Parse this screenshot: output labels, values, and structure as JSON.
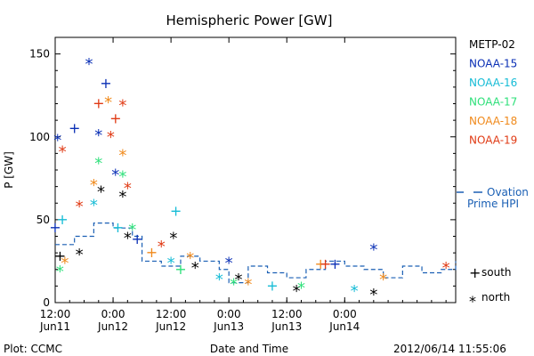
{
  "chart_data": {
    "type": "scatter",
    "title": "Hemispheric Power [GW]",
    "ylabel": "P [GW]",
    "xlabel": "Date and Time",
    "ylim": [
      0,
      160
    ],
    "xlim": [
      "2012-06-11 12:00",
      "2012-06-14 23:00"
    ],
    "yticks": [
      0,
      50,
      100,
      150
    ],
    "xticks": [
      {
        "x": "2012-06-11 12:00",
        "time": "12:00",
        "day": "Jun11"
      },
      {
        "x": "2012-06-12 00:00",
        "time": "0:00",
        "day": "Jun12"
      },
      {
        "x": "2012-06-12 12:00",
        "time": "12:00",
        "day": "Jun12"
      },
      {
        "x": "2012-06-13 00:00",
        "time": "0:00",
        "day": "Jun13"
      },
      {
        "x": "2012-06-13 12:00",
        "time": "12:00",
        "day": "Jun13"
      },
      {
        "x": "2012-06-14 00:00",
        "time": "0:00",
        "day": "Jun14"
      }
    ],
    "grid": false,
    "legend_position": "right",
    "symbols": {
      "south": "+",
      "north": "*"
    },
    "legend_symbols": [
      {
        "symbol": "+",
        "label": "south"
      },
      {
        "symbol": "*",
        "label": "north"
      }
    ],
    "series": [
      {
        "name": "METP-02",
        "color": "#000000",
        "points": [
          {
            "x": "2012-06-11 13:00",
            "y": 28,
            "h": "south"
          },
          {
            "x": "2012-06-11 17:00",
            "y": 30,
            "h": "north"
          },
          {
            "x": "2012-06-11 21:30",
            "y": 68,
            "h": "north"
          },
          {
            "x": "2012-06-12 02:00",
            "y": 65,
            "h": "north"
          },
          {
            "x": "2012-06-12 03:00",
            "y": 40,
            "h": "north"
          },
          {
            "x": "2012-06-12 12:30",
            "y": 40,
            "h": "north"
          },
          {
            "x": "2012-06-12 17:00",
            "y": 22,
            "h": "north"
          },
          {
            "x": "2012-06-13 02:00",
            "y": 15,
            "h": "north"
          },
          {
            "x": "2012-06-13 14:00",
            "y": 8,
            "h": "north"
          },
          {
            "x": "2012-06-14 06:00",
            "y": 6,
            "h": "north"
          }
        ]
      },
      {
        "name": "NOAA-15",
        "color": "#0a2fb5",
        "points": [
          {
            "x": "2012-06-11 12:00",
            "y": 45,
            "h": "south"
          },
          {
            "x": "2012-06-11 12:30",
            "y": 99,
            "h": "north"
          },
          {
            "x": "2012-06-11 16:00",
            "y": 105,
            "h": "south"
          },
          {
            "x": "2012-06-11 19:00",
            "y": 145,
            "h": "north"
          },
          {
            "x": "2012-06-11 21:00",
            "y": 102,
            "h": "north"
          },
          {
            "x": "2012-06-11 22:30",
            "y": 132,
            "h": "south"
          },
          {
            "x": "2012-06-12 00:30",
            "y": 78,
            "h": "north"
          },
          {
            "x": "2012-06-12 05:00",
            "y": 38,
            "h": "south"
          },
          {
            "x": "2012-06-13 00:00",
            "y": 25,
            "h": "north"
          },
          {
            "x": "2012-06-13 22:00",
            "y": 23,
            "h": "south"
          },
          {
            "x": "2012-06-14 06:00",
            "y": 33,
            "h": "north"
          }
        ]
      },
      {
        "name": "NOAA-16",
        "color": "#16bcd6",
        "points": [
          {
            "x": "2012-06-11 13:30",
            "y": 50,
            "h": "south"
          },
          {
            "x": "2012-06-11 20:00",
            "y": 60,
            "h": "north"
          },
          {
            "x": "2012-06-12 01:00",
            "y": 45,
            "h": "south"
          },
          {
            "x": "2012-06-12 12:00",
            "y": 25,
            "h": "north"
          },
          {
            "x": "2012-06-12 13:00",
            "y": 55,
            "h": "south"
          },
          {
            "x": "2012-06-12 22:00",
            "y": 15,
            "h": "north"
          },
          {
            "x": "2012-06-13 09:00",
            "y": 10,
            "h": "south"
          },
          {
            "x": "2012-06-14 02:00",
            "y": 8,
            "h": "north"
          }
        ]
      },
      {
        "name": "NOAA-17",
        "color": "#2ee07a",
        "points": [
          {
            "x": "2012-06-11 13:00",
            "y": 20,
            "h": "north"
          },
          {
            "x": "2012-06-11 21:00",
            "y": 85,
            "h": "north"
          },
          {
            "x": "2012-06-12 02:00",
            "y": 77,
            "h": "north"
          },
          {
            "x": "2012-06-12 04:00",
            "y": 45,
            "h": "north"
          },
          {
            "x": "2012-06-12 14:00",
            "y": 20,
            "h": "south"
          },
          {
            "x": "2012-06-13 01:00",
            "y": 12,
            "h": "north"
          },
          {
            "x": "2012-06-13 15:00",
            "y": 10,
            "h": "north"
          }
        ]
      },
      {
        "name": "NOAA-18",
        "color": "#f08a1c",
        "points": [
          {
            "x": "2012-06-11 14:00",
            "y": 25,
            "h": "north"
          },
          {
            "x": "2012-06-11 20:00",
            "y": 72,
            "h": "north"
          },
          {
            "x": "2012-06-11 23:00",
            "y": 122,
            "h": "north"
          },
          {
            "x": "2012-06-12 02:00",
            "y": 90,
            "h": "north"
          },
          {
            "x": "2012-06-12 08:00",
            "y": 30,
            "h": "south"
          },
          {
            "x": "2012-06-12 16:00",
            "y": 28,
            "h": "north"
          },
          {
            "x": "2012-06-13 04:00",
            "y": 12,
            "h": "north"
          },
          {
            "x": "2012-06-13 19:00",
            "y": 23,
            "h": "south"
          },
          {
            "x": "2012-06-14 08:00",
            "y": 15,
            "h": "north"
          }
        ]
      },
      {
        "name": "NOAA-19",
        "color": "#e03a14",
        "points": [
          {
            "x": "2012-06-11 13:30",
            "y": 92,
            "h": "north"
          },
          {
            "x": "2012-06-11 17:00",
            "y": 59,
            "h": "north"
          },
          {
            "x": "2012-06-11 21:00",
            "y": 120,
            "h": "south"
          },
          {
            "x": "2012-06-11 23:30",
            "y": 101,
            "h": "north"
          },
          {
            "x": "2012-06-12 00:30",
            "y": 111,
            "h": "south"
          },
          {
            "x": "2012-06-12 02:00",
            "y": 120,
            "h": "north"
          },
          {
            "x": "2012-06-12 03:00",
            "y": 70,
            "h": "north"
          },
          {
            "x": "2012-06-12 10:00",
            "y": 35,
            "h": "north"
          },
          {
            "x": "2012-06-13 20:00",
            "y": 23,
            "h": "south"
          },
          {
            "x": "2012-06-14 21:00",
            "y": 22,
            "h": "north"
          }
        ]
      },
      {
        "name": "Ovation Prime HPI",
        "type": "line",
        "color": "#1a5fb4",
        "dash": true,
        "points": [
          {
            "x": "2012-06-11 12:00",
            "y": 35
          },
          {
            "x": "2012-06-11 16:00",
            "y": 40
          },
          {
            "x": "2012-06-11 20:00",
            "y": 48
          },
          {
            "x": "2012-06-12 00:00",
            "y": 45
          },
          {
            "x": "2012-06-12 04:00",
            "y": 40
          },
          {
            "x": "2012-06-12 06:00",
            "y": 25
          },
          {
            "x": "2012-06-12 10:00",
            "y": 22
          },
          {
            "x": "2012-06-12 14:00",
            "y": 28
          },
          {
            "x": "2012-06-12 18:00",
            "y": 25
          },
          {
            "x": "2012-06-12 22:00",
            "y": 20
          },
          {
            "x": "2012-06-13 00:00",
            "y": 12
          },
          {
            "x": "2012-06-13 04:00",
            "y": 22
          },
          {
            "x": "2012-06-13 08:00",
            "y": 18
          },
          {
            "x": "2012-06-13 12:00",
            "y": 15
          },
          {
            "x": "2012-06-13 16:00",
            "y": 20
          },
          {
            "x": "2012-06-13 20:00",
            "y": 25
          },
          {
            "x": "2012-06-14 00:00",
            "y": 22
          },
          {
            "x": "2012-06-14 04:00",
            "y": 20
          },
          {
            "x": "2012-06-14 08:00",
            "y": 15
          },
          {
            "x": "2012-06-14 12:00",
            "y": 22
          },
          {
            "x": "2012-06-14 16:00",
            "y": 18
          },
          {
            "x": "2012-06-14 20:00",
            "y": 20
          },
          {
            "x": "2012-06-14 23:00",
            "y": 25
          }
        ]
      }
    ],
    "legend_entries": [
      {
        "label": "METP-02",
        "color": "#000000"
      },
      {
        "label": "NOAA-15",
        "color": "#0a2fb5"
      },
      {
        "label": "NOAA-16",
        "color": "#16bcd6"
      },
      {
        "label": "NOAA-17",
        "color": "#2ee07a"
      },
      {
        "label": "NOAA-18",
        "color": "#f08a1c"
      },
      {
        "label": "NOAA-19",
        "color": "#e03a14"
      }
    ],
    "ovation_legend": {
      "line1": "Ovation",
      "line2": "Prime HPI",
      "color": "#1a5fb4"
    }
  },
  "footer": {
    "left": "Plot: CCMC",
    "right": "2012/06/14 11:55:06"
  }
}
